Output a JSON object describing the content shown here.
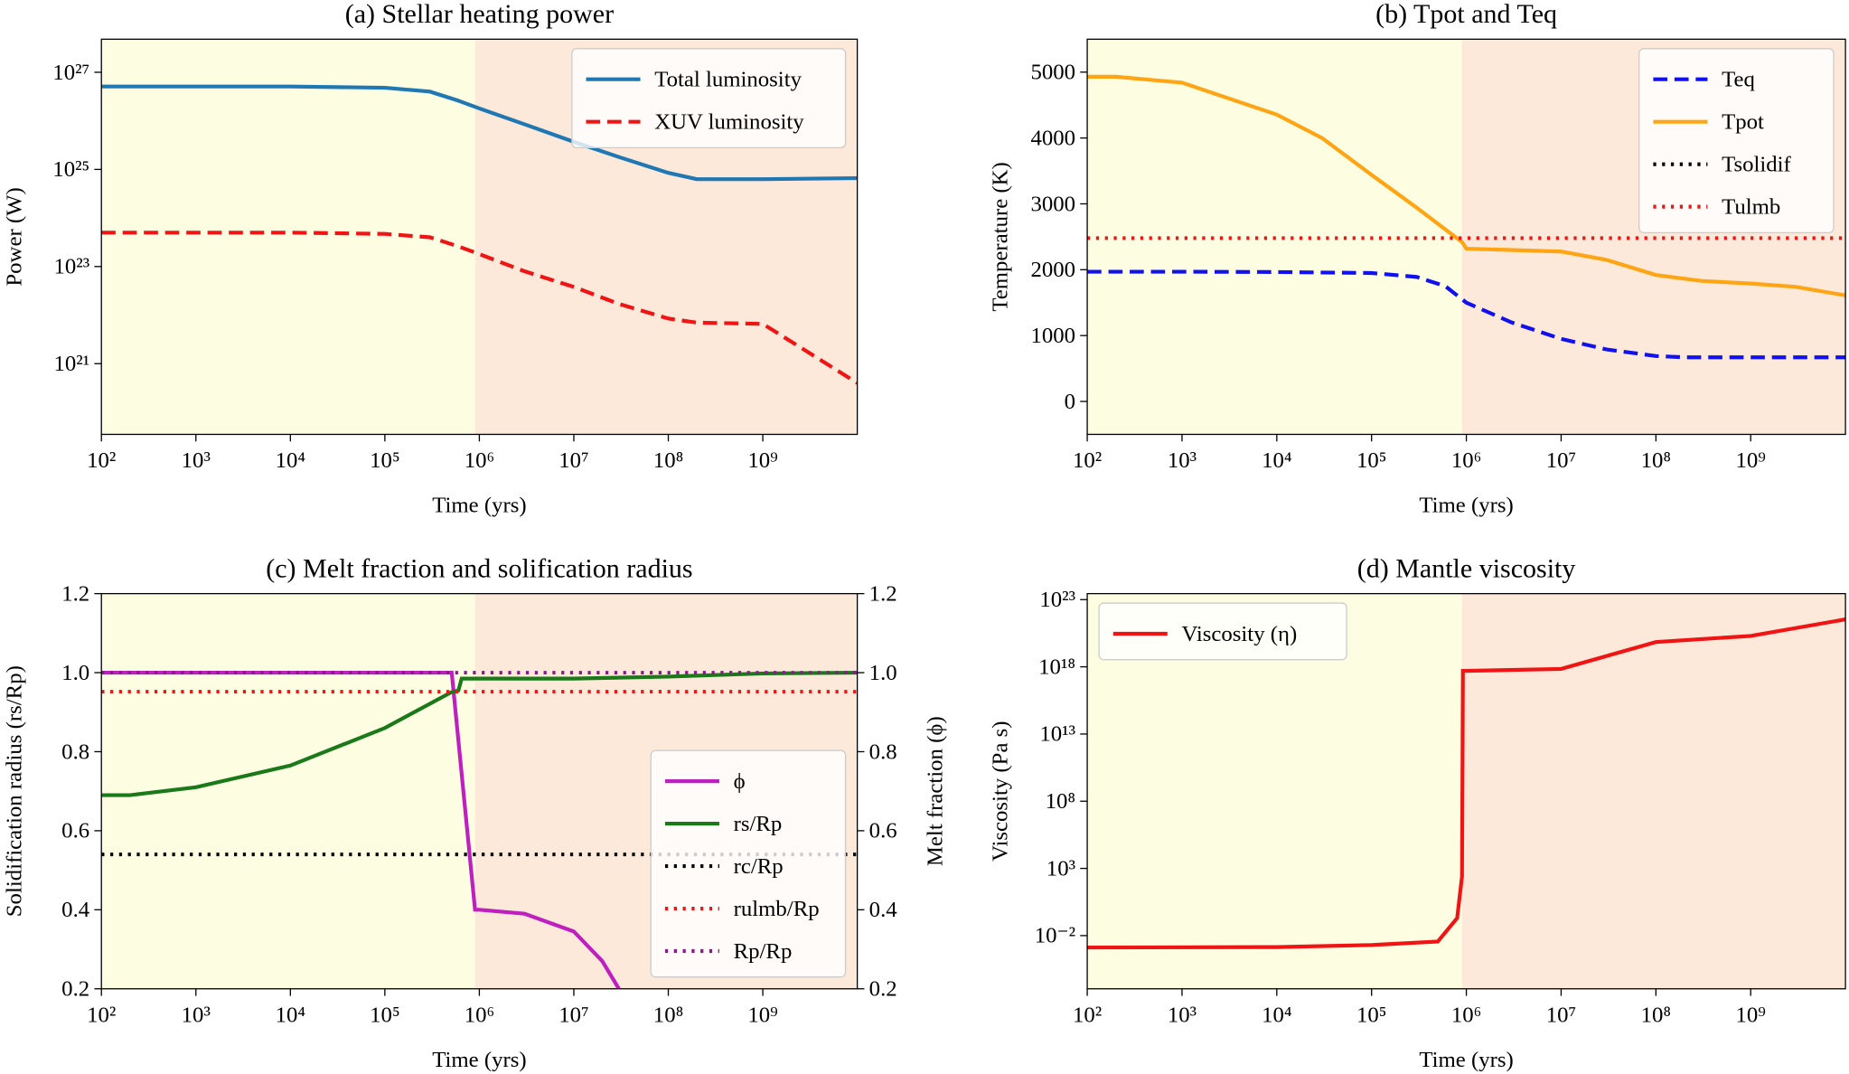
{
  "chart_data": [
    {
      "type": "line",
      "title": "(a) Stellar heating power",
      "xlabel": "Time (yrs)",
      "ylabel": "Power (W)",
      "xscale": "log",
      "yscale": "log",
      "xlim": [
        100,
        10000000000.0
      ],
      "ylim": [
        3.5e+19,
        4.8e+27
      ],
      "xticks": [
        {
          "value": 100,
          "label": "10²"
        },
        {
          "value": 1000,
          "label": "10³"
        },
        {
          "value": 10000,
          "label": "10⁴"
        },
        {
          "value": 100000,
          "label": "10⁵"
        },
        {
          "value": 1000000,
          "label": "10⁶"
        },
        {
          "value": 10000000,
          "label": "10⁷"
        },
        {
          "value": 100000000,
          "label": "10⁸"
        },
        {
          "value": 1000000000,
          "label": "10⁹"
        }
      ],
      "yticks": [
        {
          "value": 1e+21,
          "label": "10²¹"
        },
        {
          "value": 1e+23,
          "label": "10²³"
        },
        {
          "value": 1e+25,
          "label": "10²⁵"
        },
        {
          "value": 1e+27,
          "label": "10²⁷"
        }
      ],
      "shades": [
        {
          "xlim": [
            100,
            900000
          ],
          "color": "#fdfde2"
        },
        {
          "xlim": [
            900000,
            10000000000.0
          ],
          "color": "#fde9d9"
        }
      ],
      "legend": "upper right",
      "series": [
        {
          "name": "Total luminosity",
          "color": "#1f77b4",
          "style": "solid",
          "x": [
            100,
            1000,
            10000,
            100000,
            300000,
            600000,
            1000000,
            3000000,
            10000000,
            30000000,
            100000000,
            200000000,
            1000000000,
            10000000000.0
          ],
          "values": [
            5.1e+26,
            5.1e+26,
            5.1e+26,
            4.8e+26,
            4e+26,
            2.6e+26,
            1.8e+26,
            8.5e+25,
            3.7e+25,
            1.8e+25,
            8.5e+24,
            6.3e+24,
            6.3e+24,
            6.6e+24
          ]
        },
        {
          "name": "XUV luminosity",
          "color": "#f01414",
          "style": "dashed",
          "x": [
            100,
            1000,
            10000,
            100000,
            300000,
            600000,
            1000000,
            3000000,
            10000000,
            30000000,
            100000000,
            200000000,
            1000000000,
            10000000000.0
          ],
          "values": [
            5e+23,
            5e+23,
            5e+23,
            4.7e+23,
            4e+23,
            2.6e+23,
            1.8e+23,
            8e+22,
            3.8e+22,
            1.7e+22,
            8.5e+21,
            7e+21,
            6.6e+21,
            4e+20
          ]
        }
      ]
    },
    {
      "type": "line",
      "title": "(b) Tpot and Teq",
      "xlabel": "Time (yrs)",
      "ylabel": "Temperature (K)",
      "xscale": "log",
      "xlim": [
        100,
        10000000000.0
      ],
      "ylim": [
        -500,
        5500
      ],
      "xticks": [
        {
          "value": 100,
          "label": "10²"
        },
        {
          "value": 1000,
          "label": "10³"
        },
        {
          "value": 10000,
          "label": "10⁴"
        },
        {
          "value": 100000,
          "label": "10⁵"
        },
        {
          "value": 1000000,
          "label": "10⁶"
        },
        {
          "value": 10000000,
          "label": "10⁷"
        },
        {
          "value": 100000000,
          "label": "10⁸"
        },
        {
          "value": 1000000000,
          "label": "10⁹"
        }
      ],
      "yticks": [
        0,
        1000,
        2000,
        3000,
        4000,
        5000
      ],
      "shades": [
        {
          "xlim": [
            100,
            900000
          ],
          "color": "#fdfde2"
        },
        {
          "xlim": [
            900000,
            10000000000.0
          ],
          "color": "#fde9d9"
        }
      ],
      "legend": "upper right",
      "series": [
        {
          "name": "Teq",
          "color": "#1010f0",
          "style": "dashed",
          "x": [
            100,
            1000,
            10000,
            100000,
            300000,
            600000,
            1000000,
            3000000,
            10000000,
            30000000,
            100000000,
            200000000,
            1000000000,
            10000000000.0
          ],
          "values": [
            1970,
            1970,
            1965,
            1950,
            1890,
            1750,
            1500,
            1200,
            950,
            790,
            690,
            670,
            670,
            670
          ]
        },
        {
          "name": "Tpot",
          "color": "#ffa514",
          "style": "solid",
          "x": [
            100,
            200,
            1000,
            10000,
            30000,
            100000,
            300000,
            900000,
            1000000,
            10000000,
            30000000,
            100000000,
            300000000,
            1000000000,
            3000000000,
            10000000000.0
          ],
          "values": [
            4930,
            4930,
            4840,
            4355,
            4000,
            3440,
            2940,
            2420,
            2320,
            2276,
            2150,
            1920,
            1830,
            1790,
            1740,
            1610
          ]
        },
        {
          "name": "Tsolidif",
          "color": "#000000",
          "style": "dotted",
          "x": [
            100,
            10000000000.0
          ],
          "values": [
            null,
            null
          ]
        },
        {
          "name": "Tulmb",
          "color": "#f01414",
          "style": "dotted",
          "x": [
            100,
            10000000000.0
          ],
          "values": [
            2480,
            2480
          ]
        }
      ]
    },
    {
      "type": "line",
      "title": "(c) Melt fraction and solification radius",
      "xlabel": "Time (yrs)",
      "ylabel": "Solidification radius (rs/Rp)",
      "y2label": "Melt fraction (ϕ)",
      "xscale": "log",
      "xlim": [
        100,
        10000000000.0
      ],
      "ylim": [
        0.2,
        1.2
      ],
      "y2lim": [
        0.2,
        1.2
      ],
      "xticks": [
        {
          "value": 100,
          "label": "10²"
        },
        {
          "value": 1000,
          "label": "10³"
        },
        {
          "value": 10000,
          "label": "10⁴"
        },
        {
          "value": 100000,
          "label": "10⁵"
        },
        {
          "value": 1000000,
          "label": "10⁶"
        },
        {
          "value": 10000000,
          "label": "10⁷"
        },
        {
          "value": 100000000,
          "label": "10⁸"
        },
        {
          "value": 1000000000,
          "label": "10⁹"
        }
      ],
      "yticks": [
        0.2,
        0.4,
        0.6,
        0.8,
        {
          "value": 1,
          "label": "1.0"
        },
        1.2
      ],
      "y2ticks": [
        0.2,
        0.4,
        0.6,
        0.8,
        {
          "value": 1,
          "label": "1.0"
        },
        1.2
      ],
      "shades": [
        {
          "xlim": [
            100,
            900000
          ],
          "color": "#fdfde2"
        },
        {
          "xlim": [
            900000,
            10000000000.0
          ],
          "color": "#fde9d9"
        }
      ],
      "legend": "lower right",
      "series": [
        {
          "name": "ϕ",
          "color": "#bf1fbf",
          "style": "solid",
          "axis": "y2",
          "x": [
            100,
            510000,
            900000,
            1000000,
            3000000,
            10000000,
            20000000,
            30000000
          ],
          "values": [
            1,
            1,
            0.4,
            0.4,
            0.39,
            0.345,
            0.27,
            0.2
          ]
        },
        {
          "name": "rs/Rp",
          "color": "#1a7a1a",
          "style": "solid",
          "x": [
            100,
            200,
            1000,
            10000,
            100000,
            500000,
            600000,
            650000,
            10000000,
            100000000,
            1000000000,
            10000000000.0
          ],
          "values": [
            0.69,
            0.69,
            0.71,
            0.765,
            0.86,
            0.95,
            0.955,
            0.985,
            0.985,
            0.99,
            0.998,
            1
          ]
        },
        {
          "name": "rc/Rp",
          "color": "#000000",
          "style": "dotted",
          "x": [
            100,
            10000000000.0
          ],
          "values": [
            0.54,
            0.54
          ]
        },
        {
          "name": "rulmb/Rp",
          "color": "#f01414",
          "style": "dotted",
          "x": [
            100,
            10000000000.0
          ],
          "values": [
            0.952,
            0.952
          ]
        },
        {
          "name": "Rp/Rp",
          "color": "#8a1a8a",
          "style": "dotted",
          "x": [
            100,
            10000000000.0
          ],
          "values": [
            1,
            1
          ]
        }
      ]
    },
    {
      "type": "line",
      "title": "(d) Mantle viscosity",
      "xlabel": "Time (yrs)",
      "ylabel": "Viscosity (Pa s)",
      "xscale": "log",
      "yscale": "log",
      "xlim": [
        100,
        10000000000.0
      ],
      "ylim": [
        1.1e-06,
        2.8e+23
      ],
      "xticks": [
        {
          "value": 100,
          "label": "10²"
        },
        {
          "value": 1000,
          "label": "10³"
        },
        {
          "value": 10000,
          "label": "10⁴"
        },
        {
          "value": 100000,
          "label": "10⁵"
        },
        {
          "value": 1000000,
          "label": "10⁶"
        },
        {
          "value": 10000000,
          "label": "10⁷"
        },
        {
          "value": 100000000,
          "label": "10⁸"
        },
        {
          "value": 1000000000,
          "label": "10⁹"
        }
      ],
      "yticks": [
        {
          "value": 0.01,
          "label": "10⁻²"
        },
        {
          "value": 1000,
          "label": "10³"
        },
        {
          "value": 100000000,
          "label": "10⁸"
        },
        {
          "value": 10000000000000.0,
          "label": "10¹³"
        },
        {
          "value": 1e+18,
          "label": "10¹⁸"
        },
        {
          "value": 1e+23,
          "label": "10²³"
        }
      ],
      "shades": [
        {
          "xlim": [
            100,
            900000
          ],
          "color": "#fdfde2"
        },
        {
          "xlim": [
            900000,
            10000000000.0
          ],
          "color": "#fde9d9"
        }
      ],
      "legend": "upper left",
      "series": [
        {
          "name": "Viscosity (η)",
          "color": "#f01414",
          "style": "solid",
          "x": [
            100,
            10000,
            100000,
            500000,
            800000,
            900000,
            920000,
            1000000,
            10000000,
            100000000,
            1000000000,
            10000000000.0
          ],
          "values": [
            0.0013,
            0.0014,
            0.002,
            0.0036,
            0.2,
            250,
            5e+17,
            5e+17,
            7e+17,
            7e+19,
            2e+20,
            3.4e+21
          ]
        }
      ]
    }
  ]
}
